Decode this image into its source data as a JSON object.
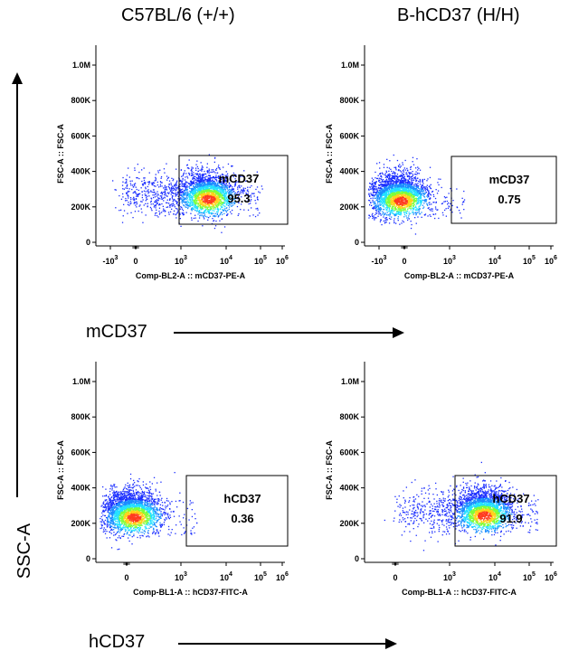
{
  "column_titles": [
    "C57BL/6 (+/+)",
    "B-hCD37 (H/H)"
  ],
  "row_labels": [
    "mCD37",
    "hCD37"
  ],
  "y_axis_label": "SSC-A",
  "colors": {
    "axis": "#000000",
    "density_low": "#1a2dff",
    "density_mid": "#22e0ff",
    "density_high": "#ff3b1f"
  },
  "chart_data": [
    {
      "type": "scatter",
      "xlabel": "Comp-BL2-A :: mCD37-PE-A",
      "ylabel": "FSC-A :: FSC-A",
      "x_ticks": [
        "-10^3",
        "0",
        "10^3",
        "10^4",
        "10^5",
        "10^6"
      ],
      "y_ticks": [
        "0",
        "200K",
        "400K",
        "600K",
        "800K",
        "1.0M"
      ],
      "gate": {
        "name": "mCD37",
        "value": "95.3"
      },
      "population": "positive"
    },
    {
      "type": "scatter",
      "xlabel": "Comp-BL2-A :: mCD37-PE-A",
      "ylabel": "FSC-A :: FSC-A",
      "x_ticks": [
        "-10^3",
        "0",
        "10^3",
        "10^4",
        "10^5",
        "10^6"
      ],
      "y_ticks": [
        "0",
        "200K",
        "400K",
        "600K",
        "800K",
        "1.0M"
      ],
      "gate": {
        "name": "mCD37",
        "value": "0.75"
      },
      "population": "negative"
    },
    {
      "type": "scatter",
      "xlabel": "Comp-BL1-A :: hCD37-FITC-A",
      "ylabel": "FSC-A :: FSC-A",
      "x_ticks": [
        "0",
        "10^3",
        "10^4",
        "10^5",
        "10^6"
      ],
      "y_ticks": [
        "0",
        "200K",
        "400K",
        "600K",
        "800K",
        "1.0M"
      ],
      "gate": {
        "name": "hCD37",
        "value": "0.36"
      },
      "population": "negative"
    },
    {
      "type": "scatter",
      "xlabel": "Comp-BL1-A :: hCD37-FITC-A",
      "ylabel": "FSC-A :: FSC-A",
      "x_ticks": [
        "0",
        "10^3",
        "10^4",
        "10^5",
        "10^6"
      ],
      "y_ticks": [
        "0",
        "200K",
        "400K",
        "600K",
        "800K",
        "1.0M"
      ],
      "gate": {
        "name": "hCD37",
        "value": "91.9"
      },
      "population": "positive"
    }
  ]
}
